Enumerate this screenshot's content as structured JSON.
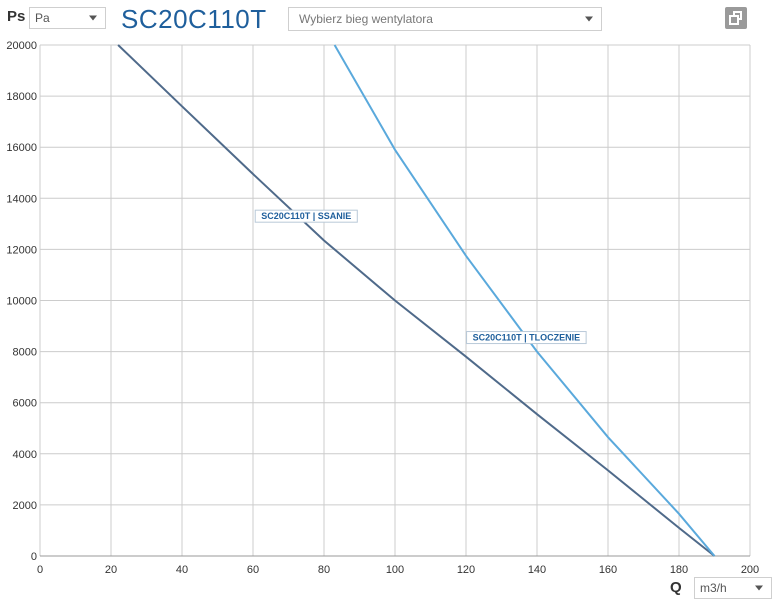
{
  "header": {
    "axis_label": "Ps",
    "unit_select": {
      "value": "Pa"
    },
    "model": "SC20C110T",
    "fan_select": {
      "placeholder": "Wybierz bieg wentylatora"
    },
    "window_icon": "restore-window-icon"
  },
  "footer": {
    "axis_label": "Q",
    "flow_select": {
      "value": "m3/h"
    }
  },
  "chart_data": {
    "type": "line",
    "xlim": [
      0,
      200
    ],
    "ylim": [
      0,
      20000
    ],
    "xticks": [
      0,
      20,
      40,
      60,
      80,
      100,
      120,
      140,
      160,
      180,
      200
    ],
    "yticks": [
      0,
      2000,
      4000,
      6000,
      8000,
      10000,
      12000,
      14000,
      16000,
      18000,
      20000
    ],
    "xlabel": "Q",
    "ylabel": "Ps",
    "grid": true,
    "series": [
      {
        "name": "SC20C110T | SSANIE",
        "color": "#4f6a8a",
        "label_at": [
          75,
          13300
        ],
        "points": [
          [
            22,
            20000
          ],
          [
            40,
            17600
          ],
          [
            60,
            14950
          ],
          [
            80,
            12350
          ],
          [
            100,
            10000
          ],
          [
            120,
            7800
          ],
          [
            140,
            5550
          ],
          [
            160,
            3350
          ],
          [
            180,
            1100
          ],
          [
            190,
            0
          ]
        ]
      },
      {
        "name": "SC20C110T | TLOCZENIE",
        "color": "#5aa9dc",
        "label_at": [
          137,
          8550
        ],
        "points": [
          [
            83,
            20000
          ],
          [
            100,
            15900
          ],
          [
            120,
            11750
          ],
          [
            140,
            8000
          ],
          [
            160,
            4650
          ],
          [
            180,
            1650
          ],
          [
            190,
            0
          ]
        ]
      }
    ]
  }
}
